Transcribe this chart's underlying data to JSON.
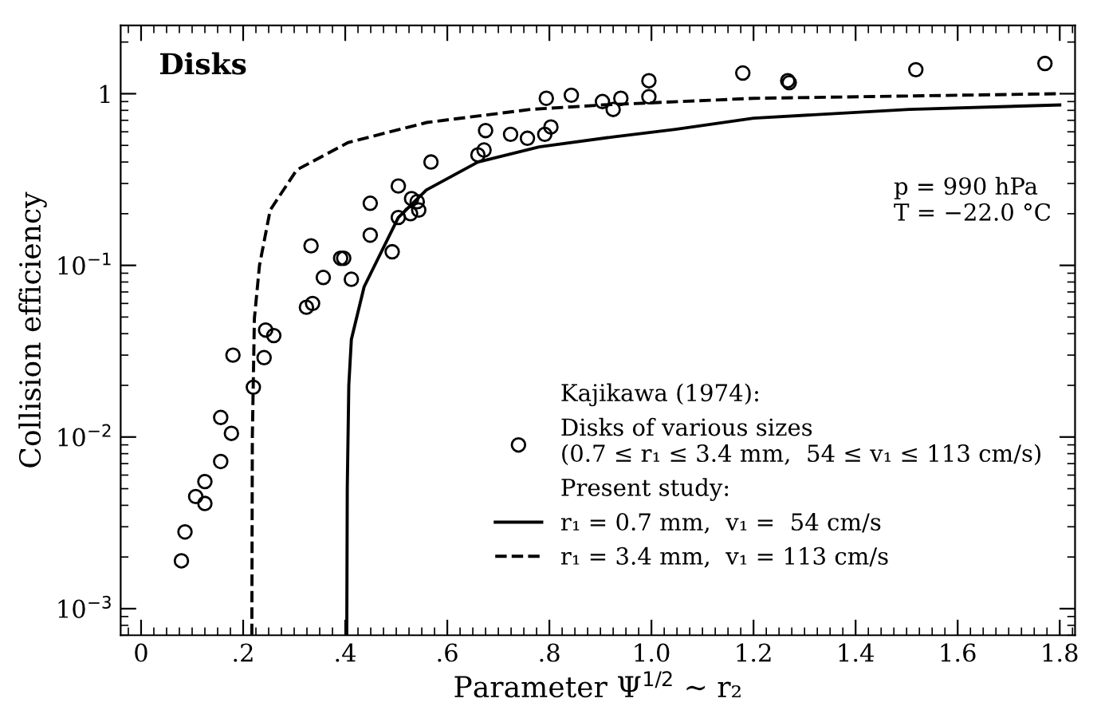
{
  "chart_data": {
    "type": "scatter",
    "xlabel": "Parameter Ψ$^{1/2}$ ~ r₂",
    "ylabel": "Collision efficiency",
    "log": "y",
    "xlim": [
      -0.04,
      1.83
    ],
    "ylim": [
      0.0007,
      2.5
    ],
    "xticks": [
      0,
      {
        "value": 0.2,
        "label": ".2"
      },
      {
        "value": 0.4,
        "label": ".4"
      },
      {
        "value": 0.6,
        "label": ".6"
      },
      {
        "value": 0.8,
        "label": ".8"
      },
      {
        "value": 1.0,
        "label": "1.0"
      },
      {
        "value": 1.2,
        "label": "1.2"
      },
      {
        "value": 1.4,
        "label": "1.4"
      },
      {
        "value": 1.6,
        "label": "1.6"
      },
      {
        "value": 1.8,
        "label": "1.8"
      }
    ],
    "yticks": [
      {
        "value": 0.001,
        "label": "10$^{−3}$"
      },
      {
        "value": 0.01,
        "label": "10$^{−2}$"
      },
      {
        "value": 0.1,
        "label": "10$^{−1}$"
      },
      1
    ],
    "grid": false,
    "legend": "lower right",
    "annotations": [
      "Disks",
      "p = 990 hPa",
      "T = −22.0 °C",
      "Kajikawa (1974):",
      "Present study:"
    ],
    "series": [
      {
        "name": "Disks of various sizes\n(0.7 ≤ r₁ ≤ 3.4 mm,  54 ≤ v₁ ≤ 113 cm/s)",
        "marker": "circle",
        "color": "#000000",
        "x": [
          0.079,
          0.086,
          0.107,
          0.125,
          0.125,
          0.156,
          0.177,
          0.156,
          0.22,
          0.18,
          0.241,
          0.244,
          0.26,
          0.324,
          0.336,
          0.357,
          0.412,
          0.391,
          0.397,
          0.333,
          0.449,
          0.449,
          0.492,
          0.504,
          0.504,
          0.528,
          0.53,
          0.541,
          0.544,
          0.568,
          0.66,
          0.672,
          0.675,
          0.724,
          0.757,
          0.791,
          0.803,
          0.794,
          0.843,
          0.904,
          0.925,
          0.94,
          0.995,
          0.995,
          1.179,
          1.267,
          1.27,
          1.518,
          1.771
        ],
        "values": [
          0.0019,
          0.0028,
          0.0045,
          0.0041,
          0.0055,
          0.0072,
          0.0105,
          0.013,
          0.0195,
          0.03,
          0.029,
          0.042,
          0.039,
          0.057,
          0.06,
          0.085,
          0.083,
          0.11,
          0.11,
          0.13,
          0.15,
          0.23,
          0.12,
          0.19,
          0.29,
          0.2,
          0.245,
          0.235,
          0.21,
          0.4,
          0.44,
          0.47,
          0.61,
          0.58,
          0.55,
          0.58,
          0.64,
          0.94,
          0.98,
          0.9,
          0.81,
          0.94,
          1.19,
          0.96,
          1.32,
          1.19,
          1.16,
          1.38,
          1.5
        ]
      },
      {
        "name": "r₁ = 0.7 mm,  v₁ =  54 cm/s",
        "type": "line",
        "line_style": "solid",
        "marker": "none",
        "color": "#000000",
        "x": [
          0.403,
          0.404,
          0.407,
          0.412,
          0.437,
          0.504,
          0.559,
          0.66,
          0.78,
          0.925,
          1.047,
          1.2,
          1.505,
          1.8
        ],
        "values": [
          0.0007,
          0.005,
          0.02,
          0.037,
          0.075,
          0.19,
          0.275,
          0.4,
          0.49,
          0.56,
          0.62,
          0.72,
          0.81,
          0.86
        ]
      },
      {
        "name": "r₁ = 3.4 mm,  v₁ = 113 cm/s",
        "type": "line",
        "line_style": "dashed",
        "marker": "none",
        "color": "#000000",
        "x": [
          0.217,
          0.218,
          0.222,
          0.232,
          0.253,
          0.305,
          0.406,
          0.56,
          0.763,
          0.904,
          1.2,
          1.8
        ],
        "values": [
          0.0007,
          0.01,
          0.049,
          0.1,
          0.21,
          0.36,
          0.52,
          0.68,
          0.81,
          0.86,
          0.94,
          1.0
        ]
      }
    ]
  }
}
